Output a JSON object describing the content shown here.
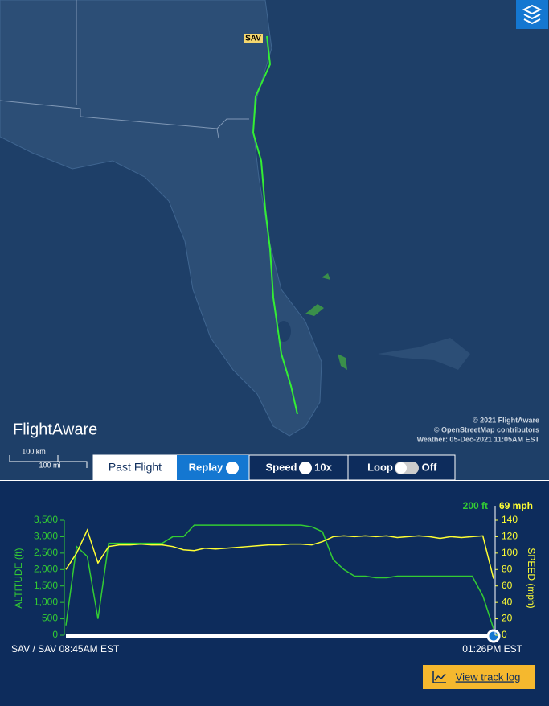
{
  "map": {
    "airport": "SAV",
    "brand": "FlightAware",
    "copyright": "© 2021 FlightAware",
    "osm": "© OpenStreetMap contributors",
    "weather": "Weather: 05-Dec-2021 11:05AM EST",
    "scale_km": "100 km",
    "scale_mi": "100 mi"
  },
  "controls": {
    "past_flight": "Past Flight",
    "replay": "Replay",
    "speed": "Speed",
    "speed_value": "10x",
    "loop": "Loop",
    "loop_value": "Off"
  },
  "chart_data": {
    "type": "line",
    "ylabel": "ALTITUDE (ft)",
    "y2label": "SPEED (mph)",
    "altitude_readout": "200 ft",
    "speed_readout": "69 mph",
    "categories": [
      "SAV / SAV 08:45AM EST",
      null,
      null,
      null,
      null,
      null,
      null,
      null,
      null,
      null,
      null,
      null,
      null,
      null,
      null,
      null,
      null,
      null,
      null,
      null,
      null,
      null,
      null,
      null,
      null,
      null,
      null,
      null,
      null,
      null,
      null,
      null,
      null,
      null,
      null,
      null,
      null,
      null,
      null,
      null,
      "01:26PM EST"
    ],
    "ylim": [
      0,
      3500
    ],
    "yticks": [
      0,
      500,
      {
        "value": 1000,
        "label": "1,000"
      },
      {
        "value": 1500,
        "label": "1,500"
      },
      {
        "value": 2000,
        "label": "2,000"
      },
      {
        "value": 2500,
        "label": "2,500"
      },
      {
        "value": 3000,
        "label": "3,000"
      },
      {
        "value": 3500,
        "label": "3,500"
      }
    ],
    "y2lim": [
      0,
      140
    ],
    "y2ticks": [
      0,
      20,
      40,
      60,
      80,
      100,
      120,
      140
    ],
    "series": [
      {
        "color": "#33cc33",
        "values": [
          300,
          2700,
          2400,
          500,
          2800,
          2800,
          2800,
          2800,
          2800,
          2800,
          3000,
          3000,
          3350,
          3350,
          3350,
          3350,
          3350,
          3350,
          3350,
          3350,
          3350,
          3350,
          3350,
          3300,
          3150,
          2300,
          2000,
          1800,
          1800,
          1750,
          1750,
          1800,
          1800,
          1800,
          1800,
          1800,
          1800,
          1800,
          1800,
          1200,
          200
        ]
      },
      {
        "color": "#ffff33",
        "axis": "y2",
        "values": [
          80,
          100,
          128,
          88,
          108,
          110,
          110,
          111,
          110,
          110,
          108,
          104,
          103,
          106,
          105,
          106,
          107,
          108,
          109,
          110,
          110,
          111,
          111,
          110,
          114,
          120,
          121,
          120,
          121,
          120,
          121,
          119,
          120,
          121,
          120,
          118,
          120,
          119,
          120,
          121,
          69
        ]
      }
    ]
  },
  "button": "View track log"
}
